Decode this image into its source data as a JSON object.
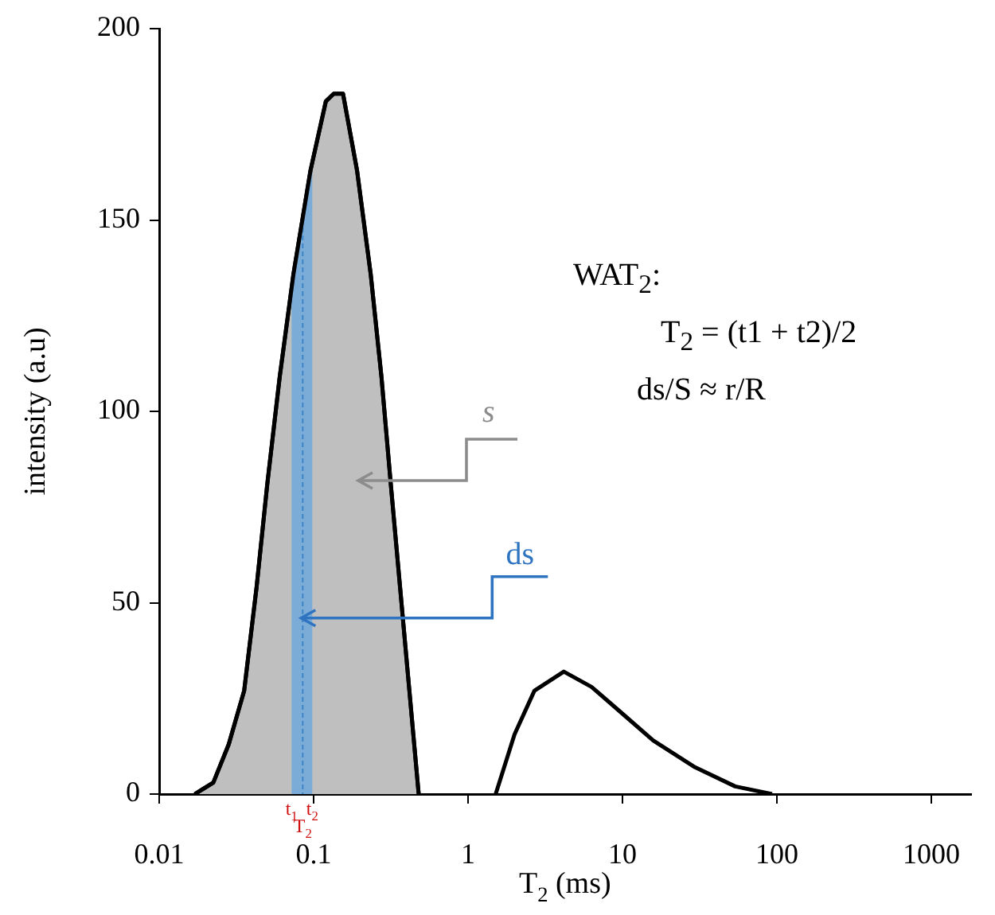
{
  "chart_data": {
    "type": "area",
    "xlabel": "T$_{2}$ (ms)",
    "ylabel": "intensity (a.u)",
    "log": "x",
    "marker": "none",
    "grid": false,
    "legend": false,
    "xlim": [
      0.01,
      1800
    ],
    "xticks": [
      0.01,
      0.1,
      1,
      10,
      100,
      1000
    ],
    "ylim": [
      0,
      200
    ],
    "yticks": [
      0,
      50,
      100,
      150,
      200
    ],
    "series": [
      {
        "color": "#bfbfbf",
        "x": [
          0.017,
          0.0224,
          0.0282,
          0.0355,
          0.0427,
          0.0501,
          0.0603,
          0.0741,
          0.0955,
          0.12,
          0.135,
          0.155,
          0.191,
          0.234,
          0.275,
          0.316,
          0.363,
          0.417,
          0.479
        ],
        "values": [
          0,
          3,
          13,
          27,
          54,
          81,
          109,
          136,
          163,
          181,
          183,
          183,
          163,
          136,
          109,
          81,
          54,
          27,
          0
        ]
      },
      {
        "type": "line",
        "color": "#000000",
        "x": [
          1.51,
          2.0,
          2.69,
          4.17,
          6.31,
          10,
          15.8,
          29.5,
          53.7,
          93
        ],
        "values": [
          0,
          15.6,
          27,
          32,
          28,
          21,
          14,
          7,
          2,
          0
        ]
      }
    ],
    "bands": [
      {
        "axis": "x",
        "from": 0.072,
        "to": 0.098,
        "color": "#6fa8dc"
      }
    ],
    "ref_lines": [
      {
        "axis": "x",
        "value": 0.085,
        "color": "#3d85c6",
        "line_style": "dashed"
      }
    ],
    "annotations": [
      "s",
      {
        "text": "ds",
        "x": 0.083,
        "y": 46
      },
      {
        "text": "t$_{1}$",
        "x": 0.072,
        "y": 0
      },
      {
        "text": "T$_{2}$",
        "x": 0.085,
        "y": 0
      },
      {
        "text": "t$_{2}$",
        "x": 0.098,
        "y": 0
      },
      "WAT$_{2}$:",
      "T$_{2}$ = (t1 + t2)/2",
      "ds/S ≈ r/R"
    ]
  }
}
